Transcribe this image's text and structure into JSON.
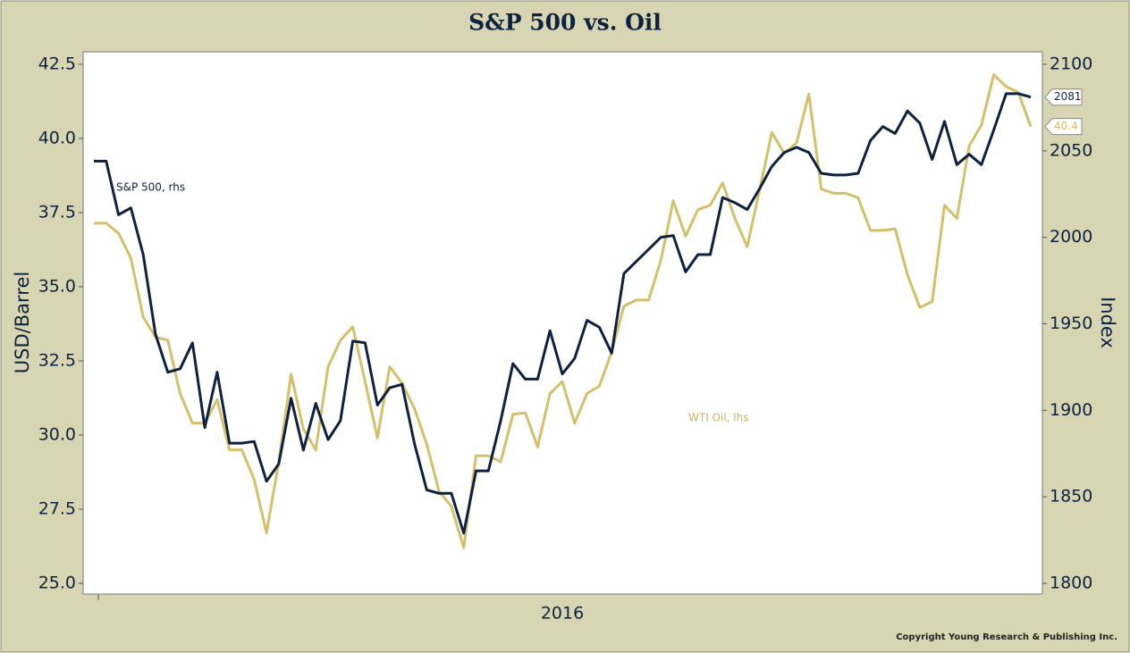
{
  "chart_data": {
    "type": "line",
    "title": "S&P 500 vs. Oil",
    "ylabel": "USD/Barrel",
    "y2label": "Index",
    "copyright": "Copyright Young Research & Publishing Inc.",
    "annotations": [
      "S&P 500, rhs",
      "WTI Oil, lhs"
    ],
    "categories": [
      null,
      null,
      null,
      null,
      null,
      null,
      null,
      null,
      null,
      null,
      null,
      null,
      null,
      null,
      null,
      null,
      null,
      null,
      null,
      null,
      null,
      null,
      null,
      null,
      null,
      null,
      null,
      null,
      null,
      null,
      null,
      null,
      null,
      null,
      null,
      null,
      null,
      null,
      "2016",
      null,
      null,
      null,
      null,
      null,
      null,
      null,
      null,
      null,
      null,
      null,
      null,
      null,
      null,
      null,
      null,
      null,
      null,
      null,
      null,
      null,
      null,
      null,
      null,
      null,
      null,
      null,
      null,
      null,
      null,
      null,
      null,
      null,
      null,
      null,
      null,
      null,
      null
    ],
    "ylim": [
      24.64,
      42.92
    ],
    "yticks": [
      {
        "value": 25,
        "label": "25.0"
      },
      27.5,
      {
        "value": 30,
        "label": "30.0"
      },
      32.5,
      {
        "value": 35,
        "label": "35.0"
      },
      37.5,
      {
        "value": 40,
        "label": "40.0"
      },
      42.5
    ],
    "y2lim": [
      1793.8,
      2107.2
    ],
    "y2ticks": [
      1800,
      1850,
      1900,
      1950,
      2000,
      2050,
      2100
    ],
    "series": [
      {
        "name": "S&P 500",
        "color": "#0d2240",
        "axis": "y2",
        "end_label": "2081",
        "values": [
          2044,
          2044,
          2013,
          2017,
          1990,
          1944,
          1922,
          1924,
          1939,
          1890,
          1922,
          1881,
          1881,
          1882,
          1859,
          1869,
          1907,
          1877,
          1904,
          1883,
          1894,
          1940,
          1939,
          1903,
          1913,
          1915,
          1881,
          1854,
          1852,
          1852,
          1829,
          1865,
          1865,
          1894,
          1927,
          1918,
          1918,
          1946,
          1921,
          1930,
          1952,
          1948,
          1933,
          1979,
          1986,
          1993,
          2000,
          2001,
          1980,
          1990,
          1990,
          2023,
          2020,
          2016,
          2028,
          2041,
          2049,
          2052,
          2049,
          2037,
          2036,
          2036,
          2037,
          2056,
          2064,
          2060,
          2073,
          2066,
          2045,
          2067,
          2042,
          2048,
          2042,
          2062,
          2083,
          2083,
          2081
        ]
      },
      {
        "name": "WTI Oil",
        "color": "#d4bf6b",
        "axis": "y",
        "end_label": "40.4",
        "values": [
          37.14,
          37.14,
          36.8,
          35.96,
          33.98,
          33.3,
          33.2,
          31.4,
          30.4,
          30.4,
          31.2,
          29.5,
          29.5,
          28.5,
          26.7,
          29.1,
          32.05,
          30.2,
          29.5,
          32.3,
          33.2,
          33.65,
          31.8,
          29.9,
          32.3,
          31.75,
          30.9,
          29.7,
          28.1,
          27.6,
          26.2,
          29.3,
          29.3,
          29.1,
          30.7,
          30.75,
          29.6,
          31.4,
          31.8,
          30.4,
          31.4,
          31.65,
          32.8,
          34.35,
          34.55,
          34.55,
          35.9,
          37.9,
          36.7,
          37.6,
          37.75,
          38.5,
          37.3,
          36.35,
          38.25,
          40.2,
          39.5,
          39.85,
          41.5,
          38.3,
          38.15,
          38.15,
          38.0,
          36.9,
          36.9,
          36.95,
          35.4,
          34.3,
          34.5,
          37.75,
          37.3,
          39.75,
          40.45,
          42.15,
          41.75,
          41.55,
          40.4
        ]
      }
    ]
  }
}
